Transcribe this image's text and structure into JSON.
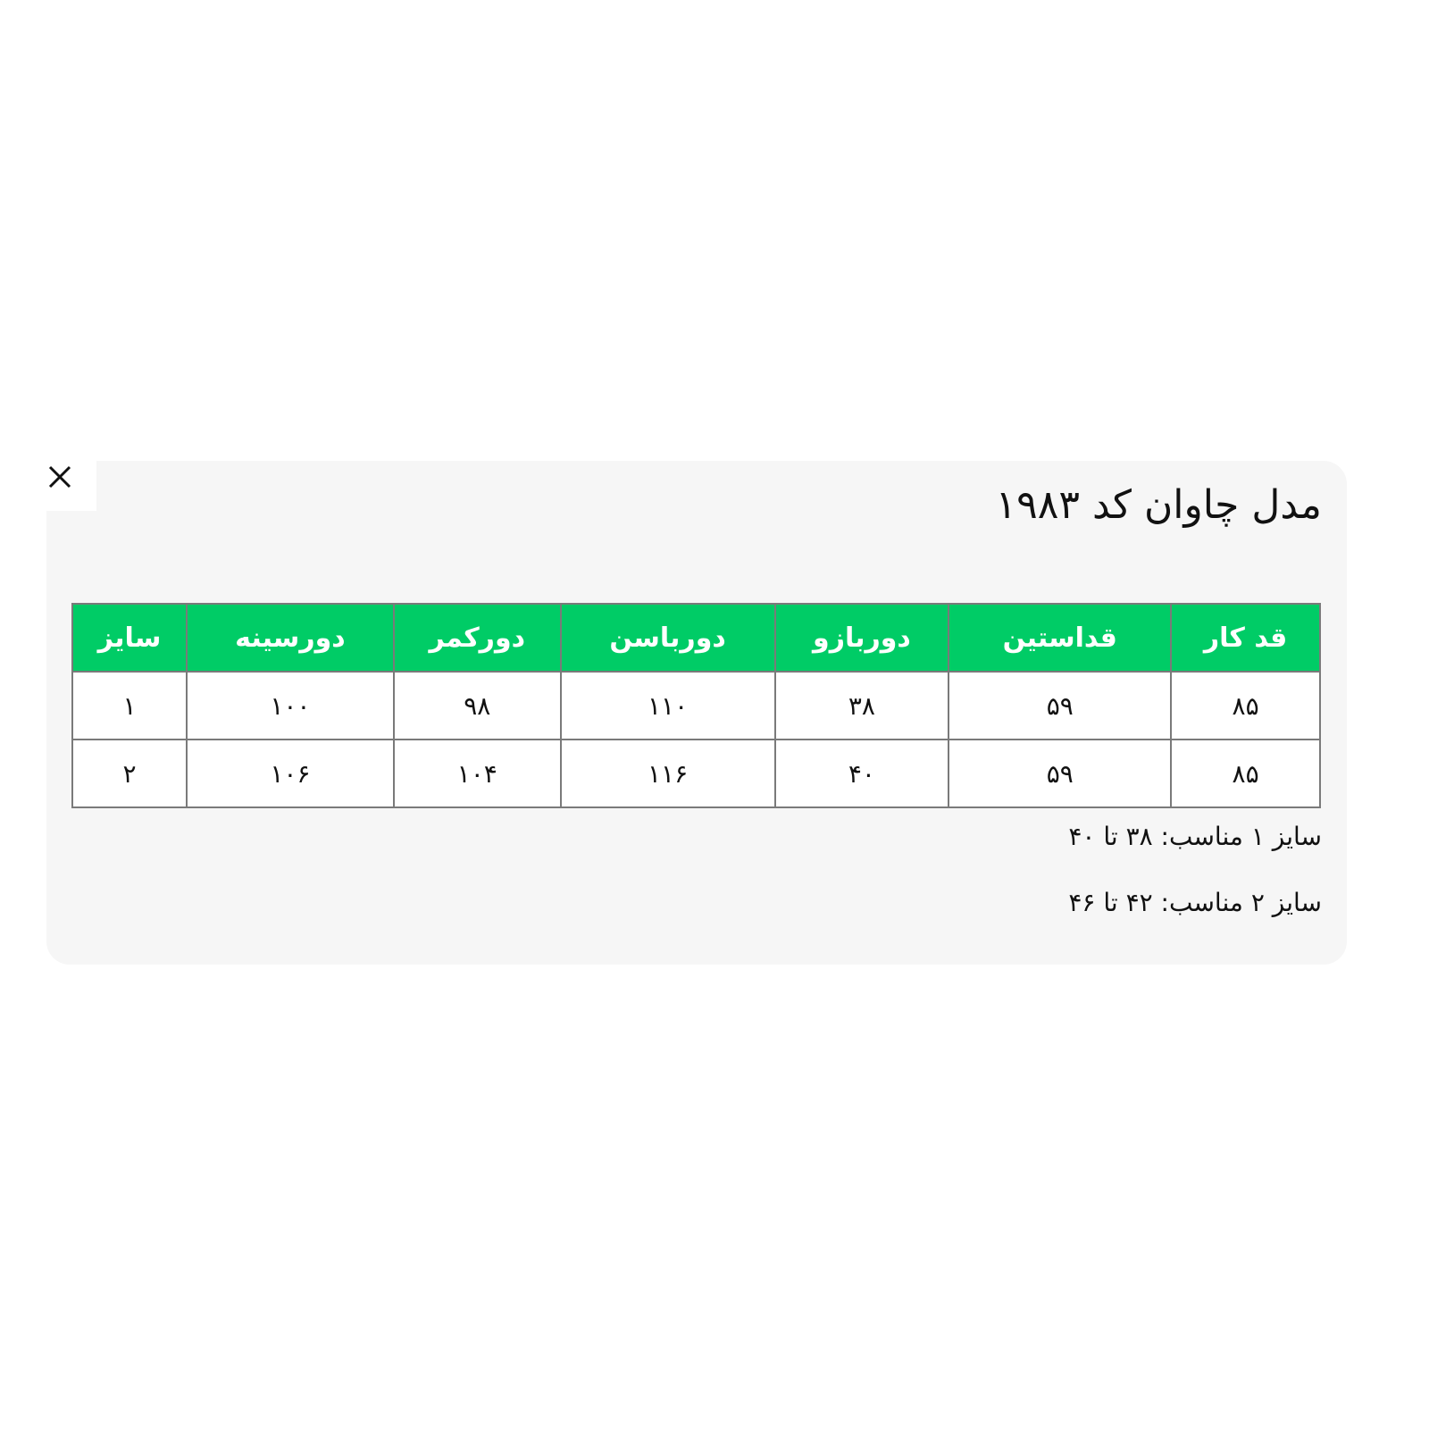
{
  "close_icon": "close-icon",
  "title": "مدل چاوان کد ۱۹۸۳",
  "colors": {
    "header_bg": "#00cc66",
    "card_bg": "#f6f6f6"
  },
  "table": {
    "headers": [
      "قد کار",
      "قداستین",
      "دوربازو",
      "دورباسن",
      "دورکمر",
      "دورسینه",
      "سایز"
    ],
    "rows": [
      [
        "۸۵",
        "۵۹",
        "۳۸",
        "۱۱۰",
        "۹۸",
        "۱۰۰",
        "۱"
      ],
      [
        "۸۵",
        "۵۹",
        "۴۰",
        "۱۱۶",
        "۱۰۴",
        "۱۰۶",
        "۲"
      ]
    ]
  },
  "notes": [
    "سایز ۱ مناسب: ۳۸ تا ۴۰",
    "سایز ۲ مناسب: ۴۲ تا ۴۶"
  ]
}
